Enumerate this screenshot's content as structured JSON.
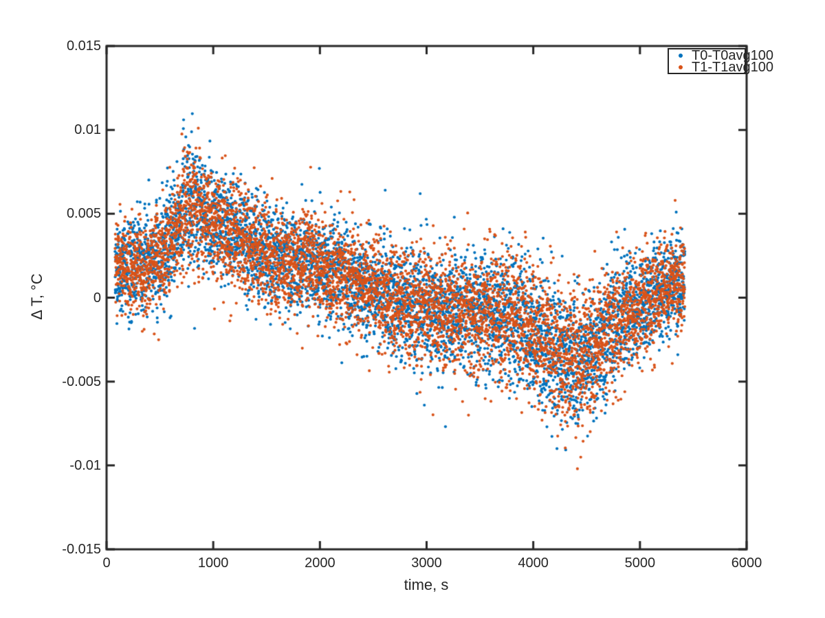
{
  "figure": {
    "background": "#ffffff",
    "axes_color": "#262626",
    "text_color": "#262626"
  },
  "chart_data": {
    "type": "scatter",
    "title": "",
    "xlabel": "time, s",
    "ylabel": "Δ T, °C",
    "xlim": [
      0,
      6000
    ],
    "ylim": [
      -0.015,
      0.015
    ],
    "grid": false,
    "legend_position": "top-right-inside",
    "xticks": [
      0,
      1000,
      2000,
      3000,
      4000,
      5000,
      6000
    ],
    "xtick_labels": [
      "0",
      "1000",
      "2000",
      "3000",
      "4000",
      "5000",
      "6000"
    ],
    "yticks": [
      0.015,
      0.01,
      0.005,
      0,
      -0.005,
      -0.01,
      -0.015
    ],
    "ytick_labels": [
      "0.015",
      "0.01",
      "0.005",
      "0",
      "-0.005",
      "-0.01",
      "-0.015"
    ],
    "marker": {
      "shape": "dot",
      "radius": 2.1
    },
    "t_start": 80,
    "t_end": 5420,
    "time_step_s": 1,
    "n_points_per_series": 5341,
    "trend": {
      "t": [
        80,
        300,
        500,
        650,
        750,
        850,
        1000,
        1200,
        1400,
        1600,
        1900,
        2100,
        2400,
        2600,
        2800,
        3000,
        3200,
        3400,
        3600,
        3800,
        4000,
        4200,
        4400,
        4600,
        4800,
        5000,
        5200,
        5420
      ],
      "mean": [
        0.0018,
        0.002,
        0.0023,
        0.004,
        0.0058,
        0.0051,
        0.0046,
        0.0038,
        0.0029,
        0.0022,
        0.0021,
        0.0016,
        0.0008,
        0.0002,
        -0.0003,
        -0.0007,
        -0.0008,
        -0.001,
        -0.001,
        -0.0013,
        -0.002,
        -0.0031,
        -0.0037,
        -0.0028,
        -0.0014,
        -0.0004,
        0.0004,
        0.001
      ]
    },
    "sigma": {
      "t": [
        80,
        600,
        800,
        1500,
        2500,
        3500,
        4300,
        4700,
        5420
      ],
      "value": [
        0.0014,
        0.0016,
        0.0017,
        0.0015,
        0.0016,
        0.0018,
        0.0021,
        0.0018,
        0.0014
      ]
    },
    "series": [
      {
        "name": "T0-T0avg100",
        "color": "#0072BD",
        "seed": 1337,
        "outliers": [
          [
            722,
            0.0106
          ],
          [
            1995,
            0.0077
          ],
          [
            2940,
            0.0062
          ],
          [
            5340,
            0.0051
          ]
        ]
      },
      {
        "name": "T1-T1avg100",
        "color": "#D95319",
        "seed": 7741,
        "outliers": [
          [
            860,
            0.0101
          ],
          [
            2280,
            0.0063
          ],
          [
            4414,
            -0.0102
          ],
          [
            5330,
            0.0058
          ]
        ]
      }
    ]
  }
}
